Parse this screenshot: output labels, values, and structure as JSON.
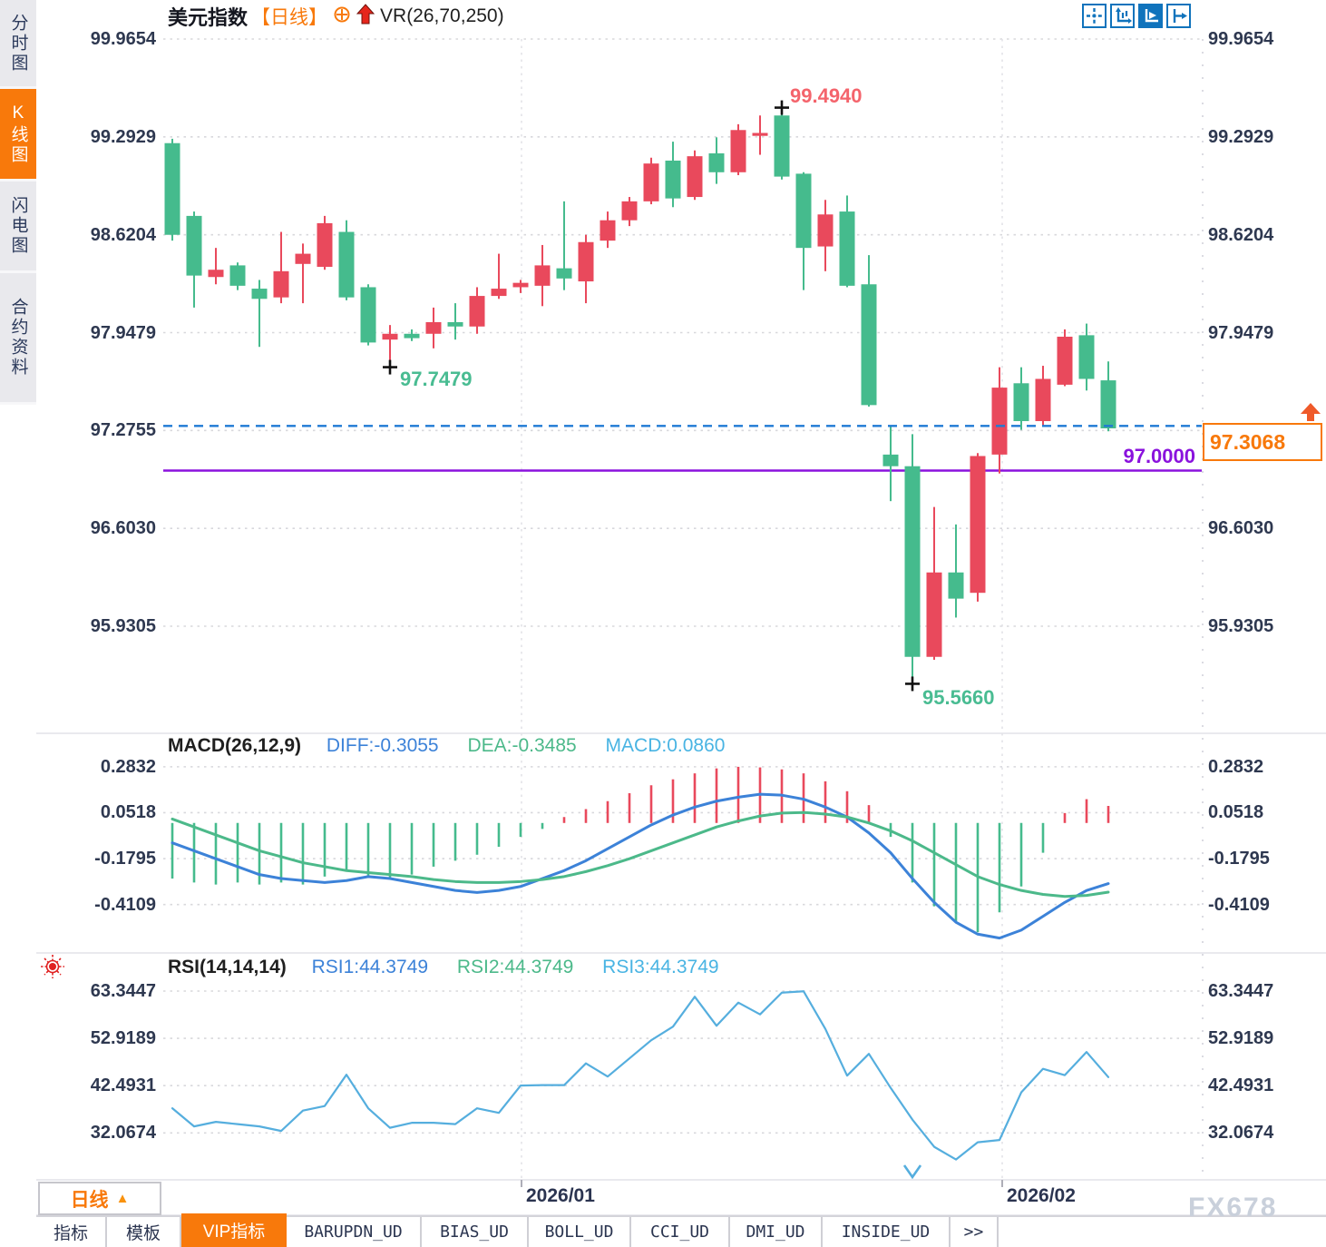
{
  "colors": {
    "accent": "#f8790b",
    "up": "#e9495c",
    "down": "#45bb8d",
    "blue": "#3c82d8",
    "green": "#4cb98a",
    "cyan": "#49b4e3",
    "rsi": "#55aede",
    "purple": "#8a12dd",
    "cpline": "#1f7ad4",
    "axis": "#2e3850",
    "iconblue": "#1073bc",
    "labelred": "#f4646c",
    "labelgreen": "#49bc92"
  },
  "sidebar": {
    "items": [
      {
        "label": "分时图",
        "active": false
      },
      {
        "label": "K线图",
        "active": true
      },
      {
        "label": "闪电图",
        "active": false
      },
      {
        "label": "合约资料",
        "active": false
      }
    ]
  },
  "header": {
    "title": "美元指数",
    "period_tag": "【日线】",
    "indicator_label": "VR(26,70,250)"
  },
  "toolbar_icons": [
    "crosshair-icon",
    "axes-scale-icon",
    "auto-scale-icon",
    "pan-right-icon"
  ],
  "main_chart": {
    "y_axis_labels": [
      "99.9654",
      "99.2929",
      "98.6204",
      "97.9479",
      "97.2755",
      "96.6030",
      "95.9305"
    ],
    "annotations": {
      "high_label": "99.4940",
      "swing_low_label": "97.7479",
      "low_label": "95.5660",
      "hline_label": "97.0000",
      "hline_value": 97.0,
      "current_price": "97.3068",
      "current_price_value": 97.3068
    }
  },
  "macd_panel": {
    "label": "MACD(26,12,9)",
    "diff_label": "DIFF:-0.3055",
    "dea_label": "DEA:-0.3485",
    "macd_label": "MACD:0.0860",
    "y_axis_labels": [
      "0.2832",
      "0.0518",
      "-0.1795",
      "-0.4109"
    ]
  },
  "rsi_panel": {
    "label": "RSI(14,14,14)",
    "rsi1_label": "RSI1:44.3749",
    "rsi2_label": "RSI2:44.3749",
    "rsi3_label": "RSI3:44.3749",
    "y_axis_labels": [
      "63.3447",
      "52.9189",
      "42.4931",
      "32.0674"
    ]
  },
  "x_axis": {
    "labels": [
      "2026/01",
      "2026/02"
    ],
    "tick_x": [
      575,
      1105
    ]
  },
  "period_selector": {
    "label": "日线",
    "arrow": "▲"
  },
  "bottom_tabs": {
    "items": [
      {
        "label": "指标",
        "active": false,
        "mono": false
      },
      {
        "label": "模板",
        "active": false,
        "mono": false
      },
      {
        "label": "VIP指标",
        "active": true,
        "mono": false
      },
      {
        "label": "BARUPDN_UD",
        "active": false,
        "mono": true
      },
      {
        "label": "BIAS_UD",
        "active": false,
        "mono": true
      },
      {
        "label": "BOLL_UD",
        "active": false,
        "mono": true
      },
      {
        "label": "CCI_UD",
        "active": false,
        "mono": true
      },
      {
        "label": "DMI_UD",
        "active": false,
        "mono": true
      },
      {
        "label": "INSIDE_UD",
        "active": false,
        "mono": true
      },
      {
        "label": ">>",
        "active": false,
        "mono": true
      }
    ]
  },
  "watermark": "FX678",
  "chart_data": [
    {
      "type": "candlestick",
      "title": "美元指数 【日线】",
      "x_tick_labels": [
        "2026/01",
        "2026/02"
      ],
      "y_ticks": [
        99.9654,
        99.2929,
        98.6204,
        97.9479,
        97.2755,
        96.603,
        95.9305
      ],
      "ylim": [
        95.21,
        99.9654
      ],
      "grid": "dotted-horizontal",
      "annotations": {
        "high": 99.494,
        "swing_low": 97.7479,
        "low": 95.566,
        "support_line": 97.0,
        "last_price": 97.3068
      },
      "marked_candles": {
        "high_index": 28,
        "swing_low_index": 10,
        "low_index": 34
      },
      "candles_ohlc": [
        [
          99.25,
          99.28,
          98.58,
          98.62
        ],
        [
          98.75,
          98.78,
          98.12,
          98.34
        ],
        [
          98.33,
          98.53,
          98.28,
          98.38
        ],
        [
          98.41,
          98.43,
          98.24,
          98.27
        ],
        [
          98.25,
          98.31,
          97.85,
          98.18
        ],
        [
          98.19,
          98.64,
          98.15,
          98.37
        ],
        [
          98.42,
          98.56,
          98.15,
          98.49
        ],
        [
          98.4,
          98.75,
          98.38,
          98.7
        ],
        [
          98.64,
          98.72,
          98.17,
          98.19
        ],
        [
          98.26,
          98.28,
          97.86,
          97.88
        ],
        [
          97.9,
          98.0,
          97.7479,
          97.94
        ],
        [
          97.94,
          97.97,
          97.89,
          97.91
        ],
        [
          97.94,
          98.12,
          97.84,
          98.02
        ],
        [
          98.02,
          98.15,
          97.9,
          97.99
        ],
        [
          97.99,
          98.26,
          97.94,
          98.2
        ],
        [
          98.2,
          98.49,
          98.18,
          98.25
        ],
        [
          98.26,
          98.31,
          98.22,
          98.29
        ],
        [
          98.27,
          98.55,
          98.13,
          98.41
        ],
        [
          98.39,
          98.85,
          98.24,
          98.32
        ],
        [
          98.3,
          98.62,
          98.15,
          98.57
        ],
        [
          98.58,
          98.78,
          98.53,
          98.72
        ],
        [
          98.72,
          98.88,
          98.68,
          98.85
        ],
        [
          98.85,
          99.15,
          98.83,
          99.11
        ],
        [
          99.13,
          99.26,
          98.81,
          98.87
        ],
        [
          98.88,
          99.2,
          98.86,
          99.16
        ],
        [
          99.18,
          99.29,
          98.97,
          99.05
        ],
        [
          99.05,
          99.38,
          99.03,
          99.34
        ],
        [
          99.3,
          99.44,
          99.17,
          99.32
        ],
        [
          99.44,
          99.494,
          99.0,
          99.02
        ],
        [
          99.04,
          99.05,
          98.24,
          98.53
        ],
        [
          98.54,
          98.86,
          98.37,
          98.76
        ],
        [
          98.78,
          98.89,
          98.26,
          98.27
        ],
        [
          98.28,
          98.48,
          97.44,
          97.45
        ],
        [
          97.11,
          97.31,
          96.79,
          97.03
        ],
        [
          97.03,
          97.25,
          95.566,
          95.72
        ],
        [
          95.72,
          96.75,
          95.7,
          96.3
        ],
        [
          96.3,
          96.63,
          95.99,
          96.12
        ],
        [
          96.16,
          97.12,
          96.1,
          97.1
        ],
        [
          97.11,
          97.71,
          96.98,
          97.57
        ],
        [
          97.6,
          97.71,
          97.28,
          97.34
        ],
        [
          97.34,
          97.72,
          97.31,
          97.63
        ],
        [
          97.59,
          97.97,
          97.58,
          97.92
        ],
        [
          97.93,
          98.01,
          97.55,
          97.63
        ],
        [
          97.62,
          97.75,
          97.27,
          97.29
        ]
      ]
    },
    {
      "type": "bar",
      "name": "MACD(26,12,9)",
      "y_ticks": [
        0.2832,
        0.0518,
        -0.1795,
        -0.4109
      ],
      "last": {
        "DIFF": -0.3055,
        "DEA": -0.3485,
        "MACD": 0.086
      },
      "histogram": [
        -0.28,
        -0.3,
        -0.31,
        -0.3,
        -0.31,
        -0.3,
        -0.31,
        -0.27,
        -0.24,
        -0.27,
        -0.28,
        -0.26,
        -0.22,
        -0.19,
        -0.16,
        -0.12,
        -0.07,
        -0.03,
        0.03,
        0.07,
        0.11,
        0.15,
        0.19,
        0.22,
        0.25,
        0.275,
        0.283,
        0.28,
        0.27,
        0.25,
        0.21,
        0.16,
        0.09,
        -0.07,
        -0.3,
        -0.42,
        -0.5,
        -0.55,
        -0.45,
        -0.32,
        -0.15,
        0.05,
        0.12,
        0.086
      ],
      "series": [
        {
          "name": "DIFF",
          "values": [
            -0.1,
            -0.14,
            -0.18,
            -0.22,
            -0.26,
            -0.28,
            -0.29,
            -0.3,
            -0.29,
            -0.27,
            -0.28,
            -0.3,
            -0.32,
            -0.34,
            -0.35,
            -0.34,
            -0.32,
            -0.28,
            -0.24,
            -0.19,
            -0.13,
            -0.07,
            -0.01,
            0.04,
            0.08,
            0.11,
            0.13,
            0.145,
            0.14,
            0.12,
            0.08,
            0.03,
            -0.05,
            -0.15,
            -0.28,
            -0.4,
            -0.5,
            -0.56,
            -0.58,
            -0.54,
            -0.47,
            -0.4,
            -0.34,
            -0.3055
          ]
        },
        {
          "name": "DEA",
          "values": [
            0.02,
            -0.02,
            -0.06,
            -0.1,
            -0.14,
            -0.17,
            -0.2,
            -0.22,
            -0.24,
            -0.25,
            -0.26,
            -0.27,
            -0.285,
            -0.295,
            -0.3,
            -0.3,
            -0.295,
            -0.285,
            -0.27,
            -0.245,
            -0.215,
            -0.18,
            -0.14,
            -0.1,
            -0.06,
            -0.02,
            0.01,
            0.035,
            0.05,
            0.053,
            0.045,
            0.03,
            0.0,
            -0.04,
            -0.09,
            -0.15,
            -0.21,
            -0.27,
            -0.31,
            -0.34,
            -0.36,
            -0.37,
            -0.365,
            -0.3485
          ]
        }
      ]
    },
    {
      "type": "line",
      "name": "RSI(14,14,14)",
      "y_ticks": [
        63.3447,
        52.9189,
        42.4931,
        32.0674
      ],
      "last": 44.3749,
      "series": [
        {
          "name": "RSI",
          "values": [
            37.5,
            33.5,
            34.5,
            34.0,
            33.5,
            32.5,
            37.0,
            38.0,
            44.9,
            37.5,
            33.2,
            34.3,
            34.3,
            34.0,
            37.5,
            36.5,
            42.5,
            42.6,
            42.6,
            47.4,
            44.5,
            48.5,
            52.5,
            55.5,
            62.1,
            55.7,
            60.8,
            58.2,
            63.0,
            63.3,
            55.0,
            44.7,
            49.5,
            42.0,
            35.0,
            29.0,
            26.2,
            30.0,
            30.5,
            41.0,
            46.2,
            44.8,
            49.9,
            44.3749
          ]
        }
      ],
      "marker": {
        "type": "chevron-down",
        "x_index": 34
      }
    }
  ]
}
